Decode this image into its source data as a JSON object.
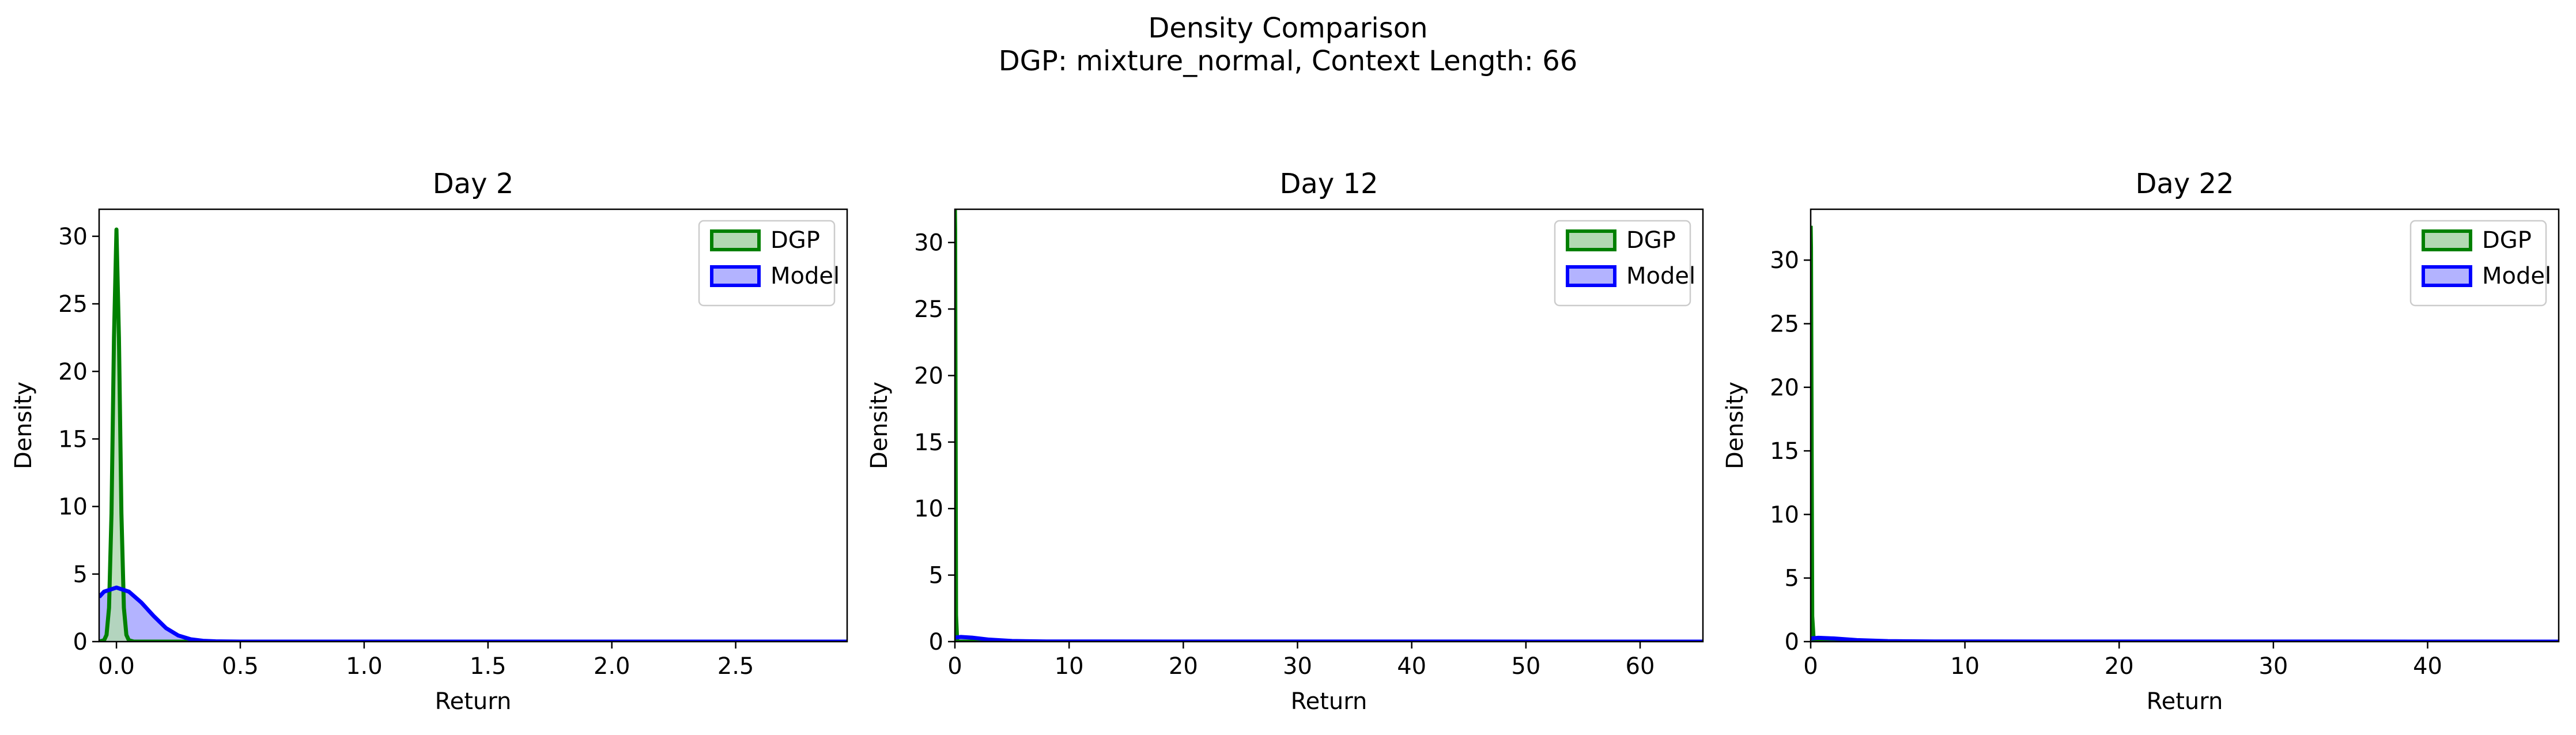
{
  "figure": {
    "title_line1": "Density Comparison",
    "title_line2": "DGP: mixture_normal, Context Length: 66"
  },
  "colors": {
    "dgp_line": "#008000",
    "dgp_fill": "#b3d9b3",
    "model_line": "#0000ff",
    "model_fill": "#b3b3ff",
    "overlap_fill": "#3a7466"
  },
  "chart_data": [
    {
      "type": "area",
      "title": "Day 2",
      "xlabel": "Return",
      "ylabel": "Density",
      "xlim": [
        -0.07,
        2.95
      ],
      "ylim": [
        0,
        32
      ],
      "xticks": [
        0.0,
        0.5,
        1.0,
        1.5,
        2.0,
        2.5
      ],
      "xtick_labels": [
        "0.0",
        "0.5",
        "1.0",
        "1.5",
        "2.0",
        "2.5"
      ],
      "yticks": [
        0,
        5,
        10,
        15,
        20,
        25,
        30
      ],
      "ytick_labels": [
        "0",
        "5",
        "10",
        "15",
        "20",
        "25",
        "30"
      ],
      "legend": {
        "position": "top-right",
        "entries": [
          "DGP",
          "Model"
        ]
      },
      "series": [
        {
          "name": "DGP",
          "x": [
            -0.07,
            -0.05,
            -0.04,
            -0.03,
            -0.02,
            -0.01,
            0.0,
            0.01,
            0.02,
            0.03,
            0.04,
            0.05,
            0.07,
            2.95
          ],
          "y": [
            0,
            0.1,
            0.5,
            2.5,
            9.5,
            22.5,
            30.5,
            22.5,
            9.5,
            2.5,
            0.5,
            0.1,
            0,
            0
          ]
        },
        {
          "name": "Model",
          "x": [
            -0.07,
            -0.05,
            0.0,
            0.05,
            0.1,
            0.15,
            0.2,
            0.25,
            0.3,
            0.35,
            0.4,
            0.5,
            2.95
          ],
          "y": [
            3.3,
            3.7,
            4.0,
            3.7,
            2.9,
            1.9,
            1.0,
            0.45,
            0.17,
            0.06,
            0.02,
            0,
            0
          ]
        }
      ]
    },
    {
      "type": "area",
      "title": "Day 12",
      "xlabel": "Return",
      "ylabel": "Density",
      "xlim": [
        0,
        65.5
      ],
      "ylim": [
        0,
        32.5
      ],
      "xticks": [
        0,
        10,
        20,
        30,
        40,
        50,
        60
      ],
      "xtick_labels": [
        "0",
        "10",
        "20",
        "30",
        "40",
        "50",
        "60"
      ],
      "yticks": [
        0,
        5,
        10,
        15,
        20,
        25,
        30
      ],
      "ytick_labels": [
        "0",
        "5",
        "10",
        "15",
        "20",
        "25",
        "30"
      ],
      "legend": {
        "position": "top-right",
        "entries": [
          "DGP",
          "Model"
        ]
      },
      "series": [
        {
          "name": "DGP",
          "x": [
            0,
            0.02,
            0.05,
            0.1,
            0.2,
            65.5
          ],
          "y": [
            32.5,
            31,
            20,
            2,
            0,
            0
          ]
        },
        {
          "name": "Model",
          "x": [
            0,
            0.5,
            1.5,
            3,
            5,
            8,
            65.5
          ],
          "y": [
            0.3,
            0.35,
            0.3,
            0.15,
            0.05,
            0.01,
            0
          ]
        }
      ]
    },
    {
      "type": "area",
      "title": "Day 22",
      "xlabel": "Return",
      "ylabel": "Density",
      "xlim": [
        0,
        48.5
      ],
      "ylim": [
        0,
        34
      ],
      "xticks": [
        0,
        10,
        20,
        30,
        40
      ],
      "xtick_labels": [
        "0",
        "10",
        "20",
        "30",
        "40"
      ],
      "yticks": [
        0,
        5,
        10,
        15,
        20,
        25,
        30
      ],
      "ytick_labels": [
        "0",
        "5",
        "10",
        "15",
        "20",
        "25",
        "30"
      ],
      "legend": {
        "position": "top-right",
        "entries": [
          "DGP",
          "Model"
        ]
      },
      "series": [
        {
          "name": "DGP",
          "x": [
            0,
            0.02,
            0.05,
            0.1,
            0.2,
            48.5
          ],
          "y": [
            32.7,
            31,
            20,
            2,
            0,
            0
          ]
        },
        {
          "name": "Model",
          "x": [
            0,
            0.5,
            1.5,
            3,
            5,
            8,
            48.5
          ],
          "y": [
            0.25,
            0.3,
            0.25,
            0.12,
            0.04,
            0.01,
            0
          ]
        }
      ]
    }
  ]
}
